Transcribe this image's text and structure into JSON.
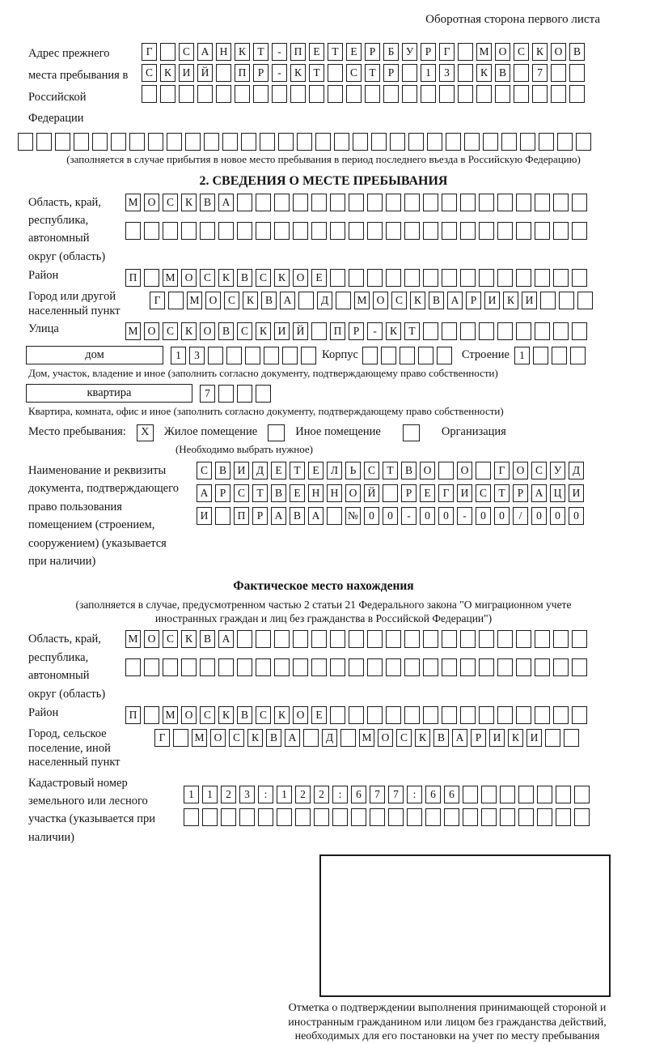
{
  "page": {
    "header_note": "Оборотная сторона первого листа"
  },
  "section1": {
    "label": "Адрес прежнего места пребывания в Российской Федерации",
    "rows": [
      {
        "t": "Г САНКТ-ПЕТЕРБУРГ МОСКОВ",
        "n": 24
      },
      {
        "t": "СКИЙ ПР-КТ СТР 13 КВ 7",
        "n": 24
      },
      {
        "t": "",
        "n": 24
      }
    ],
    "overflow_row": {
      "t": "",
      "n": 31
    },
    "note": "(заполняется в случае прибытия в новое место пребывания в период последнего въезда в Российскую Федерацию)"
  },
  "section2": {
    "title": "2. СВЕДЕНИЯ О МЕСТЕ ПРЕБЫВАНИЯ",
    "region": {
      "label": "Область, край, республика, автономный округ (область)",
      "rows": [
        {
          "t": "МОСКВА",
          "n": 25
        },
        {
          "t": "",
          "n": 25
        }
      ]
    },
    "district": {
      "label": "Район",
      "row": {
        "t": "П МОСКВСКОЕ",
        "n": 25
      }
    },
    "city": {
      "label": "Город или другой населенный пункт",
      "row": {
        "t": "Г МОСКВА Д МОСКВАРИКИ",
        "n": 24
      }
    },
    "street": {
      "label": "Улица",
      "row": {
        "t": "МОСКОВСКИЙ ПР-КТ",
        "n": 25
      }
    },
    "house": {
      "box_label": "дом",
      "number": {
        "t": "13",
        "n": 8
      },
      "korpus_label": "Корпус",
      "korpus": {
        "t": "",
        "n": 5
      },
      "stroenie_label": "Строение",
      "stroenie": {
        "t": "1",
        "n": 4
      },
      "note": "Дом, участок, владение и иное (заполнить согласно документу, подтверждающему право собственности)"
    },
    "apartment": {
      "box_label": "квартира",
      "number": {
        "t": "7",
        "n": 4
      },
      "note": "Квартира, комната, офис и иное (заполнить согласно документу, подтверждающему право собственности)"
    },
    "stay_type": {
      "label": "Место пребывания:",
      "options": [
        {
          "label": "Жилое помещение",
          "mark": "X"
        },
        {
          "label": "Иное помещение",
          "mark": ""
        },
        {
          "label": "Организация",
          "mark": ""
        }
      ],
      "note": "(Необходимо выбрать нужное)"
    },
    "document": {
      "label": "Наименование и реквизиты документа, подтверждающего право пользования помещением (строением, сооружением) (указывается при наличии)",
      "rows": [
        {
          "t": "СВИДЕТЕЛЬСТВО О ГОСУД",
          "n": 21
        },
        {
          "t": "АРСТВЕННОЙ РЕГИСТРАЦИ",
          "n": 21
        },
        {
          "t": "И ПРАВА №00-00-00/000",
          "n": 21
        }
      ]
    }
  },
  "section3": {
    "title": "Фактическое место нахождения",
    "note": "(заполняется в случае, предусмотренном частью 2 статьи 21 Федерального закона \"О миграционном учете иностранных граждан и лиц без гражданства в Российской Федерации\")",
    "region": {
      "label": "Область, край, республика, автономный округ (область)",
      "rows": [
        {
          "t": "МОСКВА",
          "n": 25
        },
        {
          "t": "",
          "n": 25
        }
      ]
    },
    "district": {
      "label": "Район",
      "row": {
        "t": "П МОСКВСКОЕ",
        "n": 25
      }
    },
    "city": {
      "label": "Город, сельское поселение, иной населенный пункт",
      "row": {
        "t": "Г МОСКВА Д МОСКВАРИКИ",
        "n": 23
      }
    },
    "cadastre": {
      "label": "Кадастровый номер земельного или лесного участка (указывается при наличии)",
      "rows": [
        {
          "t": "1123:122:677:66",
          "n": 22
        },
        {
          "t": "",
          "n": 22
        }
      ]
    },
    "stamp_note": "Отметка о подтверждении выполнения принимающей стороной и иностранным гражданином или лицом без гражданства действий, необходимых для его постановки на учет по месту пребывания"
  }
}
